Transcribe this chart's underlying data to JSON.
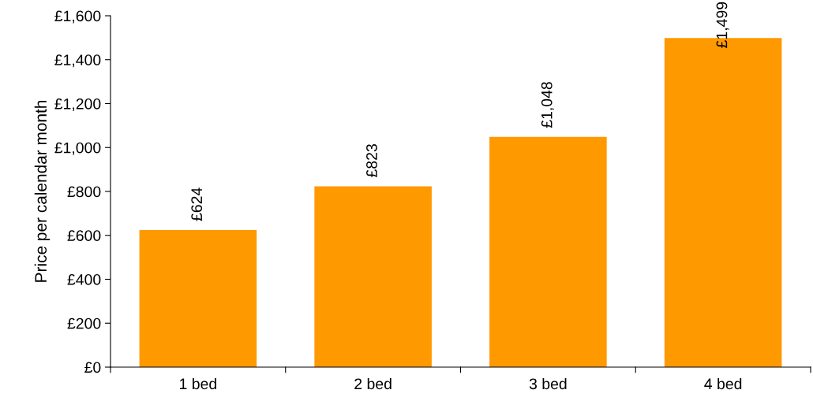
{
  "chart_data": {
    "type": "bar",
    "ylabel": "Price per calendar month",
    "categories": [
      "1 bed",
      "2 bed",
      "3 bed",
      "4 bed"
    ],
    "values": [
      624,
      823,
      1048,
      1499
    ],
    "color": "#ff9900",
    "value_labels": [
      "£624",
      "£823",
      "£1,048",
      "£1,499"
    ],
    "ylim": [
      0,
      1600
    ],
    "yticks": [
      {
        "value": 0,
        "label": "£0"
      },
      {
        "value": 200,
        "label": "£200"
      },
      {
        "value": 400,
        "label": "£400"
      },
      {
        "value": 600,
        "label": "£600"
      },
      {
        "value": 800,
        "label": "£800"
      },
      {
        "value": 1000,
        "label": "£1,000"
      },
      {
        "value": 1200,
        "label": "£1,200"
      },
      {
        "value": 1400,
        "label": "£1,400"
      },
      {
        "value": 1600,
        "label": "£1,600"
      }
    ],
    "grid": false,
    "legend": false
  }
}
